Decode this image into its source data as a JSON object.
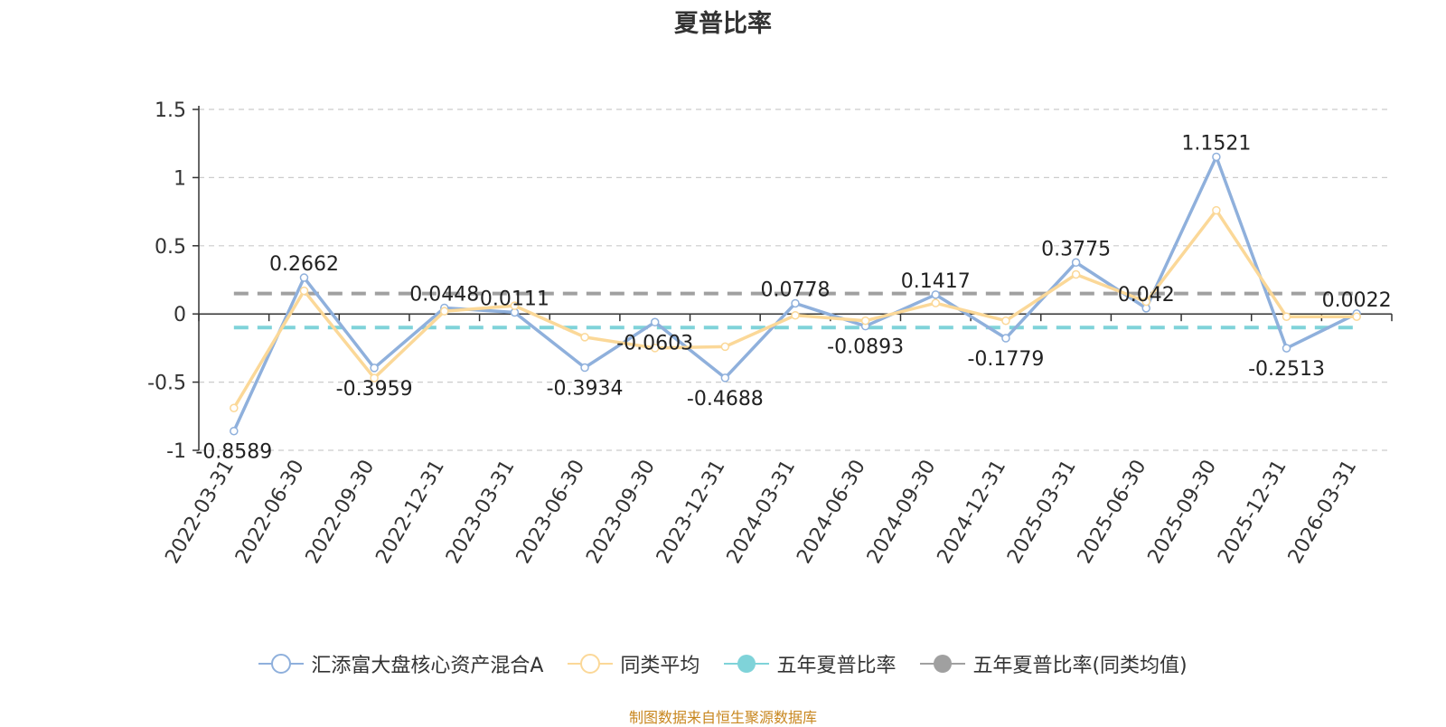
{
  "chart_data": {
    "type": "line",
    "title": "夏普比率",
    "categories": [
      "2022-03-31",
      "2022-06-30",
      "2022-09-30",
      "2022-12-31",
      "2023-03-31",
      "2023-06-30",
      "2023-09-30",
      "2023-12-31",
      "2024-03-31",
      "2024-06-30",
      "2024-09-30",
      "2024-12-31",
      "2025-03-31",
      "2025-06-30",
      "2025-09-30",
      "2025-12-31",
      "2026-03-31"
    ],
    "y_ticks": [
      "1.5",
      "1",
      "0.5",
      "0",
      "-0.5",
      "-1"
    ],
    "ylim": [
      -1,
      1.5
    ],
    "grid": true,
    "legend_position": "bottom",
    "series": [
      {
        "name": "汇添富大盘核心资产混合A",
        "color": "#8fb0dc",
        "values": [
          -0.8589,
          0.2662,
          -0.3959,
          0.0448,
          0.0111,
          -0.3934,
          -0.0603,
          -0.4688,
          0.0778,
          -0.0893,
          0.1417,
          -0.1779,
          0.3775,
          0.042,
          1.1521,
          -0.2513,
          0.0022
        ],
        "labels": [
          "-0.8589",
          "0.2662",
          "-0.3959",
          "0.0448",
          "0.0111",
          "-0.3934",
          "-0.0603",
          "-0.4688",
          "0.0778",
          "-0.0893",
          "0.1417",
          "-0.1779",
          "0.3775",
          "0.042",
          "1.1521",
          "-0.2513",
          "0.0022"
        ]
      },
      {
        "name": "同类平均",
        "color": "#fbd898",
        "values": [
          -0.69,
          0.17,
          -0.47,
          0.02,
          0.06,
          -0.17,
          -0.25,
          -0.24,
          -0.01,
          -0.05,
          0.08,
          -0.05,
          0.29,
          0.09,
          0.76,
          -0.02,
          -0.02
        ]
      },
      {
        "name": "五年夏普比率",
        "color": "#7fd3d9",
        "value": -0.1,
        "style": "dashed"
      },
      {
        "name": "五年夏普比率(同类均值)",
        "color": "#a0a0a0",
        "value": 0.15,
        "style": "dashed"
      }
    ]
  },
  "source": "制图数据来自恒生聚源数据库"
}
